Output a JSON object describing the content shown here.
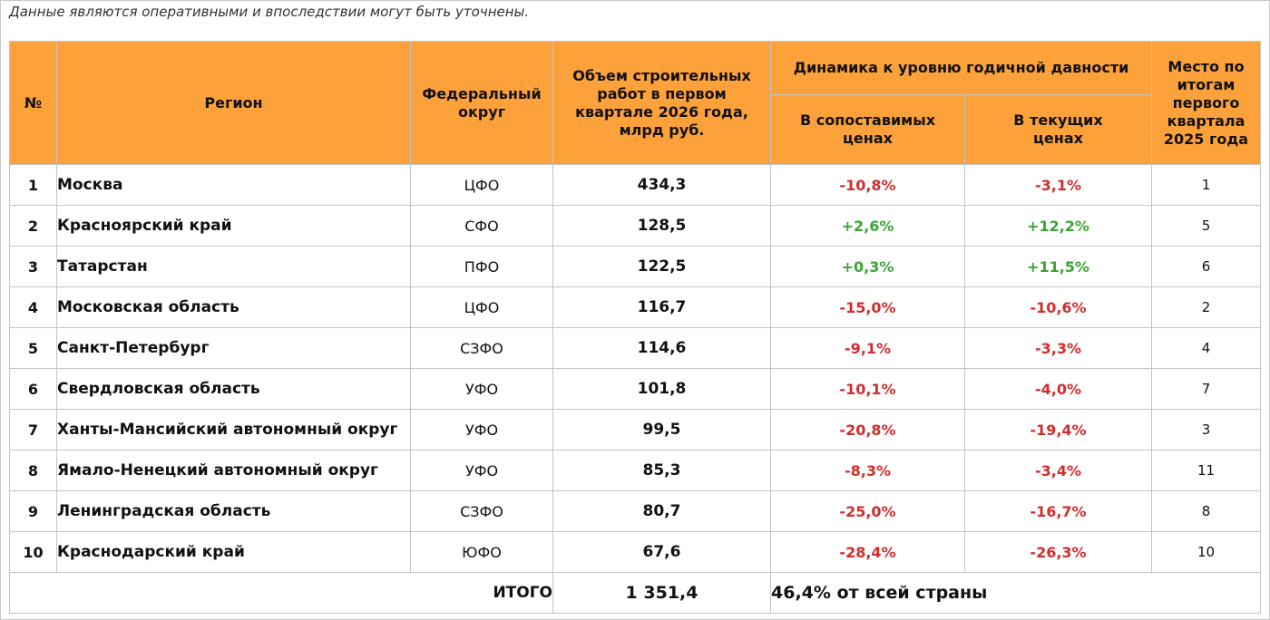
{
  "note": "Данные являются оперативными и впоследствии могут быть уточнены.",
  "header": {
    "num": "№",
    "region": "Регион",
    "district": "Федеральный округ",
    "volume": "Объем строительных работ в первом квартале 2026 года, млрд руб.",
    "dynamics": "Динамика к уровню годичной давности",
    "comparable": "В сопоставимых ценах",
    "current": "В текущих ценах",
    "place": "Место по итогам первого квартала 2025 года"
  },
  "rows": [
    {
      "num": "1",
      "region": "Москва",
      "district": "ЦФО",
      "volume": "434,3",
      "comparable": "-10,8%",
      "current": "-3,1%",
      "place": "1"
    },
    {
      "num": "2",
      "region": "Красноярский край",
      "district": "СФО",
      "volume": "128,5",
      "comparable": "+2,6%",
      "current": "+12,2%",
      "place": "5"
    },
    {
      "num": "3",
      "region": "Татарстан",
      "district": "ПФО",
      "volume": "122,5",
      "comparable": "+0,3%",
      "current": "+11,5%",
      "place": "6"
    },
    {
      "num": "4",
      "region": "Московская область",
      "district": "ЦФО",
      "volume": "116,7",
      "comparable": "-15,0%",
      "current": "-10,6%",
      "place": "2"
    },
    {
      "num": "5",
      "region": "Санкт-Петербург",
      "district": "СЗФО",
      "volume": "114,6",
      "comparable": "-9,1%",
      "current": "-3,3%",
      "place": "4"
    },
    {
      "num": "6",
      "region": "Свердловская область",
      "district": "УФО",
      "volume": "101,8",
      "comparable": "-10,1%",
      "current": "-4,0%",
      "place": "7"
    },
    {
      "num": "7",
      "region": "Ханты-Мансийский автономный округ",
      "district": "УФО",
      "volume": "99,5",
      "comparable": "-20,8%",
      "current": "-19,4%",
      "place": "3"
    },
    {
      "num": "8",
      "region": "Ямало-Ненецкий автономный округ",
      "district": "УФО",
      "volume": "85,3",
      "comparable": "-8,3%",
      "current": "-3,4%",
      "place": "11"
    },
    {
      "num": "9",
      "region": "Ленинградская область",
      "district": "СЗФО",
      "volume": "80,7",
      "comparable": "-25,0%",
      "current": "-16,7%",
      "place": "8"
    },
    {
      "num": "10",
      "region": "Краснодарский край",
      "district": "ЮФО",
      "volume": "67,6",
      "comparable": "-28,4%",
      "current": "-26,3%",
      "place": "10"
    }
  ],
  "total": {
    "label": "ИТОГО",
    "value": "1 351,4",
    "share": "46,4% от всей страны"
  },
  "colors": {
    "header_bg": "#fda23a",
    "negative": "#d32c2c",
    "positive": "#3aa535"
  }
}
